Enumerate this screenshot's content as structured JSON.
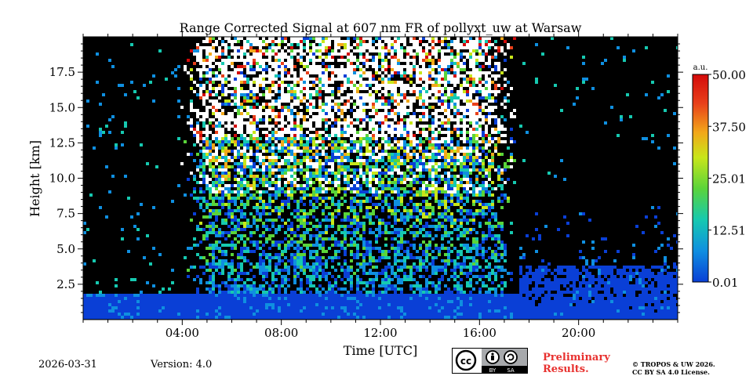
{
  "chart_data": {
    "type": "heatmap",
    "title": "Range Corrected Signal at 607 nm FR of pollyxt_uw at Warsaw",
    "xlabel": "Time [UTC]",
    "ylabel": "Height [km]",
    "xlim": [
      0,
      24
    ],
    "ylim": [
      0,
      20
    ],
    "x_ticks": [
      4,
      8,
      12,
      16,
      20
    ],
    "x_tick_labels": [
      "04:00",
      "08:00",
      "12:00",
      "16:00",
      "20:00"
    ],
    "y_ticks": [
      2.5,
      5.0,
      7.5,
      10.0,
      12.5,
      15.0,
      17.5
    ],
    "y_tick_labels": [
      "2.5",
      "5.0",
      "7.5",
      "10.0",
      "12.5",
      "15.0",
      "17.5"
    ],
    "colorbar": {
      "unit": "a.u.",
      "min": 0.01,
      "max": 50.0,
      "tick_values": [
        0.01,
        12.51,
        25.01,
        37.5,
        50.0
      ],
      "tick_labels": [
        "0.01",
        "12.51",
        "25.01",
        "37.50",
        "50.00"
      ],
      "colormap": [
        "#0a3fd6",
        "#0f8fe0",
        "#16c9b0",
        "#5ad43a",
        "#c8e61a",
        "#f2a81a",
        "#e8401a",
        "#d40a0a"
      ]
    },
    "background_color": "#000000",
    "features": [
      {
        "name": "near-surface layer",
        "start_hour": 0,
        "end_hour": 24,
        "height_km": 1.9
      },
      {
        "name": "daytime background noise",
        "start_hour": 3.9,
        "end_hour": 17.5
      },
      {
        "name": "night boundary layer",
        "start_hour": 17.6,
        "end_hour": 24,
        "height_km": 4.0
      }
    ]
  },
  "footer": {
    "date": "2026-03-31",
    "version": "Version: 4.0",
    "license_badge": {
      "cc": "cc",
      "by": "BY",
      "sa": "SA"
    },
    "preliminary_line1": "Preliminary",
    "preliminary_line2": "Results.",
    "copyright_line1": "© TROPOS & UW 2026.",
    "copyright_line2": "CC BY SA 4.0 License."
  }
}
